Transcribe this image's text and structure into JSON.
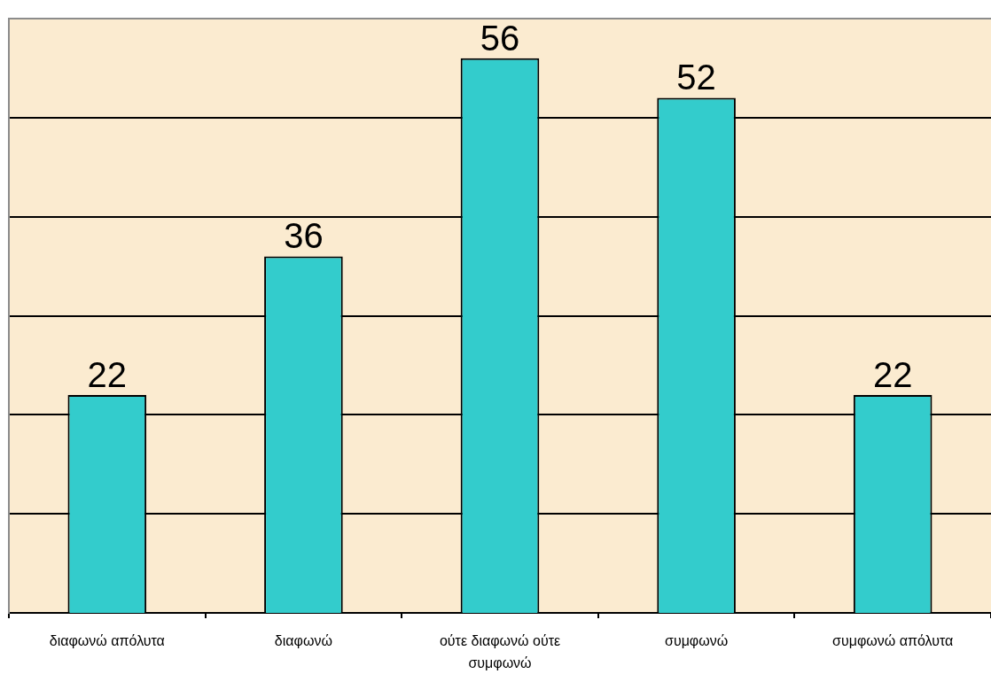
{
  "chart_data": {
    "type": "bar",
    "categories": [
      "διαφωνώ απόλυτα",
      "διαφωνώ",
      "ούτε διαφωνώ ούτε συμφωνώ",
      "συμφωνώ",
      "συμφωνώ απόλυτα"
    ],
    "values": [
      22,
      36,
      56,
      52,
      22
    ],
    "color": "#33cccc",
    "ylim": [
      0,
      60
    ],
    "yticks": [
      10,
      20,
      30,
      40,
      50
    ],
    "grid": "y",
    "tick_labels": "x",
    "data_labels": true
  }
}
